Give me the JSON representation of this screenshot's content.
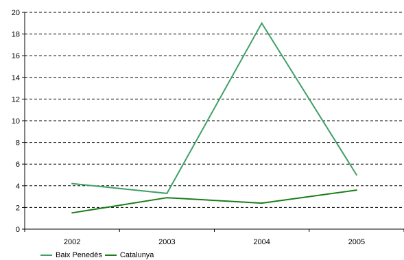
{
  "chart_data": {
    "type": "line",
    "categories": [
      "2002",
      "2003",
      "2004",
      "2005"
    ],
    "series": [
      {
        "name": "Baix Penedès",
        "values": [
          4.2,
          3.3,
          19.0,
          5.0
        ],
        "color": "#3f9f68"
      },
      {
        "name": "Catalunya",
        "values": [
          1.5,
          2.9,
          2.4,
          3.6
        ],
        "color": "#1a7d1a"
      }
    ],
    "ylim": [
      0,
      20
    ],
    "yticks": [
      0,
      2,
      4,
      6,
      8,
      10,
      12,
      14,
      16,
      18,
      20
    ],
    "grid": "horizontal dashed",
    "legend_position": "bottom-left"
  }
}
